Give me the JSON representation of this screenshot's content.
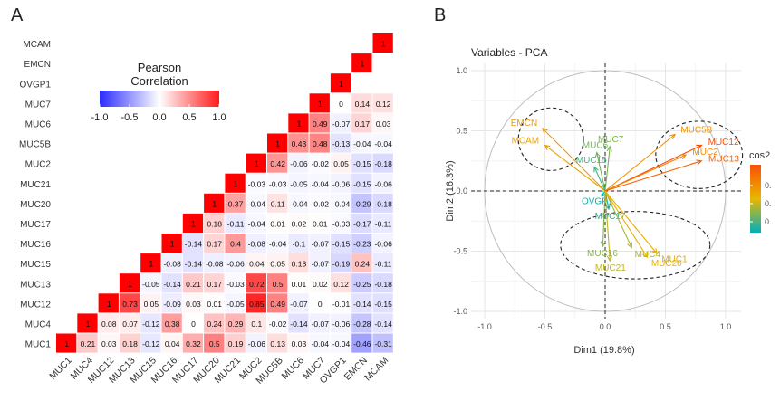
{
  "panels": {
    "a_label": "A",
    "b_label": "B"
  },
  "chart_data": [
    {
      "type": "heatmap",
      "legend_title": [
        "Pearson",
        "Correlation"
      ],
      "legend_ticks": [
        "-1.0",
        "-0.5",
        "0.0",
        "0.5",
        "1.0"
      ],
      "legend_range": [
        -1,
        1
      ],
      "colors": {
        "low": "#3333ff",
        "mid": "#ffffff",
        "high": "#ff0000"
      },
      "variables": [
        "MUC1",
        "MUC4",
        "MUC12",
        "MUC13",
        "MUC15",
        "MUC16",
        "MUC17",
        "MUC20",
        "MUC21",
        "MUC2",
        "MUC5B",
        "MUC6",
        "MUC7",
        "OVGP1",
        "EMCN",
        "MCAM"
      ],
      "cells": [
        {
          "row": "MCAM",
          "values": []
        },
        {
          "row": "EMCN",
          "values": []
        },
        {
          "row": "OVGP1",
          "values": []
        },
        {
          "row": "MUC7",
          "values": [
            "0",
            "0.14",
            "0.12"
          ]
        },
        {
          "row": "MUC6",
          "values": [
            "0.49",
            "-0.07",
            "0.17",
            "0.03"
          ]
        },
        {
          "row": "MUC5B",
          "values": [
            "0.43",
            "0.48",
            "-0.13",
            "-0.04",
            "-0.04"
          ]
        },
        {
          "row": "MUC2",
          "values": [
            "0.42",
            "-0.06",
            "-0.02",
            "0.05",
            "-0.15",
            "-0.18"
          ]
        },
        {
          "row": "MUC21",
          "values": [
            "-0.03",
            "-0.03",
            "-0.05",
            "-0.04",
            "-0.06",
            "-0.15",
            "-0.06"
          ]
        },
        {
          "row": "MUC20",
          "values": [
            "0.37",
            "-0.04",
            "0.11",
            "-0.04",
            "-0.02",
            "-0.04",
            "-0.29",
            "-0.18"
          ]
        },
        {
          "row": "MUC17",
          "values": [
            "0.18",
            "-0.11",
            "-0.04",
            "0.01",
            "0.02",
            "0.01",
            "-0.03",
            "-0.17",
            "-0.11"
          ]
        },
        {
          "row": "MUC16",
          "values": [
            "-0.14",
            "0.17",
            "0.4",
            "-0.08",
            "-0.04",
            "-0.1",
            "-0.07",
            "-0.15",
            "-0.23",
            "-0.06"
          ]
        },
        {
          "row": "MUC15",
          "values": [
            "-0.08",
            "-0.14",
            "-0.08",
            "-0.06",
            "0.04",
            "0.05",
            "0.13",
            "-0.07",
            "-0.19",
            "0.24",
            "-0.11"
          ]
        },
        {
          "row": "MUC13",
          "values": [
            "-0.05",
            "-0.14",
            "0.21",
            "0.17",
            "-0.03",
            "0.72",
            "0.5",
            "0.01",
            "0.02",
            "0.12",
            "-0.25",
            "-0.18"
          ]
        },
        {
          "row": "MUC12",
          "values": [
            "0.73",
            "0.05",
            "-0.09",
            "0.03",
            "0.01",
            "-0.05",
            "0.85",
            "0.49",
            "-0.07",
            "0",
            "-0.01",
            "-0.14",
            "-0.15"
          ]
        },
        {
          "row": "MUC4",
          "values": [
            "0.08",
            "0.07",
            "-0.12",
            "0.38",
            "0",
            "0.24",
            "0.29",
            "0.1",
            "-0.02",
            "-0.14",
            "-0.07",
            "-0.06",
            "-0.28",
            "-0.14"
          ]
        },
        {
          "row": "MUC1",
          "values": [
            "0.21",
            "0.03",
            "0.18",
            "-0.12",
            "0.04",
            "0.32",
            "0.5",
            "0.19",
            "-0.06",
            "0.13",
            "0.03",
            "-0.04",
            "-0.04",
            "-0.46",
            "-0.31"
          ]
        }
      ]
    },
    {
      "type": "scatter",
      "title": "Variables - PCA",
      "xlabel": "Dim1 (19.8%)",
      "ylabel": "Dim2 (16.3%)",
      "xlim": [
        -1.1,
        1.1
      ],
      "ylim": [
        -1.1,
        1.1
      ],
      "x_ticks": [
        "-1.0",
        "-0.5",
        "0.0",
        "0.5",
        "1.0"
      ],
      "y_ticks": [
        "1.0",
        "0.5",
        "0.0",
        "-0.5",
        "-1.0"
      ],
      "grid": true,
      "legend_title": "cos2",
      "legend_tick_labels": [
        "0.",
        "0.",
        "0."
      ],
      "colors": {
        "low": "#00AFBB",
        "mid": "#E7B800",
        "high": "#FC4E07"
      },
      "vectors": [
        {
          "name": "EMCN",
          "x": -0.52,
          "y": 0.52,
          "cos2": 0.52
        },
        {
          "name": "MCAM",
          "x": -0.5,
          "y": 0.38,
          "cos2": 0.48
        },
        {
          "name": "MUC6",
          "x": -0.07,
          "y": 0.32,
          "cos2": 0.2
        },
        {
          "name": "MUC7",
          "x": 0.04,
          "y": 0.37,
          "cos2": 0.22
        },
        {
          "name": "MUC15",
          "x": -0.09,
          "y": 0.2,
          "cos2": 0.12
        },
        {
          "name": "MUC5B",
          "x": 0.58,
          "y": 0.47,
          "cos2": 0.55
        },
        {
          "name": "MUC12",
          "x": 0.8,
          "y": 0.38,
          "cos2": 0.8
        },
        {
          "name": "MUC2",
          "x": 0.67,
          "y": 0.3,
          "cos2": 0.58
        },
        {
          "name": "MUC13",
          "x": 0.8,
          "y": 0.25,
          "cos2": 0.72
        },
        {
          "name": "OVGP1",
          "x": -0.03,
          "y": -0.04,
          "cos2": 0.02
        },
        {
          "name": "MUC17",
          "x": 0.03,
          "y": -0.15,
          "cos2": 0.05
        },
        {
          "name": "MUC16",
          "x": -0.02,
          "y": -0.46,
          "cos2": 0.24
        },
        {
          "name": "MUC4",
          "x": 0.22,
          "y": -0.47,
          "cos2": 0.3
        },
        {
          "name": "MUC1",
          "x": 0.43,
          "y": -0.52,
          "cos2": 0.45
        },
        {
          "name": "MUC21",
          "x": 0.04,
          "y": -0.58,
          "cos2": 0.33
        },
        {
          "name": "MUC20",
          "x": 0.35,
          "y": -0.55,
          "cos2": 0.42
        }
      ]
    }
  ]
}
